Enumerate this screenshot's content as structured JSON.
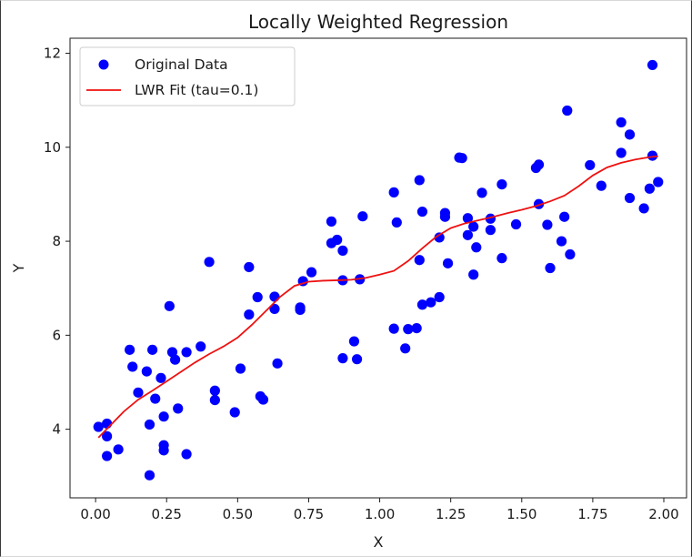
{
  "chart_data": {
    "type": "scatter",
    "title": "Locally Weighted Regression",
    "xlabel": "X",
    "ylabel": "Y",
    "xlim": [
      -0.09,
      2.08
    ],
    "ylim": [
      2.54,
      12.32
    ],
    "grid": false,
    "legend_position": "top-left",
    "xticks": [
      0.0,
      0.25,
      0.5,
      0.75,
      1.0,
      1.25,
      1.5,
      1.75,
      2.0
    ],
    "xtick_labels": [
      "0.00",
      "0.25",
      "0.50",
      "0.75",
      "1.00",
      "1.25",
      "1.50",
      "1.75",
      "2.00"
    ],
    "yticks": [
      4,
      6,
      8,
      10,
      12
    ],
    "ytick_labels": [
      "4",
      "6",
      "8",
      "10",
      "12"
    ],
    "colors": {
      "points": "#0000ff",
      "fit": "#ee1111",
      "axis": "#1a1a1a",
      "legend_border": "#cccccc"
    },
    "series": [
      {
        "name": "Original Data",
        "kind": "scatter",
        "points": [
          [
            0.01,
            4.05
          ],
          [
            0.04,
            4.12
          ],
          [
            0.04,
            3.85
          ],
          [
            0.04,
            3.43
          ],
          [
            0.08,
            3.57
          ],
          [
            0.12,
            5.69
          ],
          [
            0.13,
            5.33
          ],
          [
            0.15,
            4.78
          ],
          [
            0.18,
            5.23
          ],
          [
            0.19,
            3.02
          ],
          [
            0.19,
            4.1
          ],
          [
            0.2,
            5.69
          ],
          [
            0.21,
            4.65
          ],
          [
            0.23,
            5.09
          ],
          [
            0.24,
            4.27
          ],
          [
            0.24,
            3.66
          ],
          [
            0.24,
            3.55
          ],
          [
            0.26,
            6.62
          ],
          [
            0.27,
            5.64
          ],
          [
            0.28,
            5.48
          ],
          [
            0.29,
            4.44
          ],
          [
            0.32,
            5.64
          ],
          [
            0.32,
            3.47
          ],
          [
            0.37,
            5.76
          ],
          [
            0.4,
            7.56
          ],
          [
            0.42,
            4.62
          ],
          [
            0.42,
            4.82
          ],
          [
            0.49,
            4.36
          ],
          [
            0.51,
            5.29
          ],
          [
            0.54,
            7.45
          ],
          [
            0.54,
            6.44
          ],
          [
            0.57,
            6.81
          ],
          [
            0.58,
            4.7
          ],
          [
            0.59,
            4.63
          ],
          [
            0.63,
            6.82
          ],
          [
            0.63,
            6.56
          ],
          [
            0.64,
            5.4
          ],
          [
            0.72,
            6.54
          ],
          [
            0.72,
            6.59
          ],
          [
            0.73,
            7.15
          ],
          [
            0.76,
            7.34
          ],
          [
            0.83,
            8.42
          ],
          [
            0.83,
            7.96
          ],
          [
            0.85,
            8.03
          ],
          [
            0.87,
            7.8
          ],
          [
            0.87,
            7.17
          ],
          [
            0.87,
            5.51
          ],
          [
            0.91,
            5.87
          ],
          [
            0.92,
            5.49
          ],
          [
            0.93,
            7.19
          ],
          [
            0.94,
            8.53
          ],
          [
            1.05,
            9.04
          ],
          [
            1.05,
            6.14
          ],
          [
            1.06,
            8.4
          ],
          [
            1.09,
            5.72
          ],
          [
            1.1,
            6.13
          ],
          [
            1.13,
            6.15
          ],
          [
            1.14,
            9.3
          ],
          [
            1.14,
            7.6
          ],
          [
            1.15,
            8.63
          ],
          [
            1.15,
            6.65
          ],
          [
            1.18,
            6.7
          ],
          [
            1.21,
            8.08
          ],
          [
            1.21,
            6.81
          ],
          [
            1.23,
            8.6
          ],
          [
            1.23,
            8.52
          ],
          [
            1.24,
            7.53
          ],
          [
            1.28,
            9.78
          ],
          [
            1.29,
            9.77
          ],
          [
            1.31,
            8.49
          ],
          [
            1.31,
            8.13
          ],
          [
            1.33,
            8.31
          ],
          [
            1.33,
            7.29
          ],
          [
            1.34,
            7.87
          ],
          [
            1.36,
            9.03
          ],
          [
            1.39,
            8.48
          ],
          [
            1.39,
            8.24
          ],
          [
            1.43,
            9.21
          ],
          [
            1.43,
            7.64
          ],
          [
            1.48,
            8.36
          ],
          [
            1.55,
            9.56
          ],
          [
            1.56,
            8.79
          ],
          [
            1.56,
            9.63
          ],
          [
            1.59,
            8.35
          ],
          [
            1.6,
            7.43
          ],
          [
            1.64,
            8.0
          ],
          [
            1.65,
            8.52
          ],
          [
            1.66,
            10.78
          ],
          [
            1.67,
            7.72
          ],
          [
            1.74,
            9.62
          ],
          [
            1.78,
            9.18
          ],
          [
            1.85,
            10.53
          ],
          [
            1.85,
            9.88
          ],
          [
            1.88,
            10.27
          ],
          [
            1.88,
            8.92
          ],
          [
            1.93,
            8.7
          ],
          [
            1.95,
            9.12
          ],
          [
            1.96,
            9.82
          ],
          [
            1.96,
            11.75
          ],
          [
            1.98,
            9.26
          ]
        ]
      },
      {
        "name": "LWR Fit (tau=0.1)",
        "kind": "line",
        "points": [
          [
            0.01,
            3.82
          ],
          [
            0.05,
            4.07
          ],
          [
            0.1,
            4.38
          ],
          [
            0.15,
            4.63
          ],
          [
            0.2,
            4.82
          ],
          [
            0.25,
            5.02
          ],
          [
            0.3,
            5.22
          ],
          [
            0.35,
            5.42
          ],
          [
            0.4,
            5.6
          ],
          [
            0.45,
            5.76
          ],
          [
            0.5,
            5.95
          ],
          [
            0.55,
            6.22
          ],
          [
            0.6,
            6.52
          ],
          [
            0.65,
            6.82
          ],
          [
            0.7,
            7.05
          ],
          [
            0.75,
            7.14
          ],
          [
            0.8,
            7.16
          ],
          [
            0.85,
            7.17
          ],
          [
            0.9,
            7.18
          ],
          [
            0.95,
            7.22
          ],
          [
            1.0,
            7.29
          ],
          [
            1.05,
            7.37
          ],
          [
            1.1,
            7.58
          ],
          [
            1.15,
            7.85
          ],
          [
            1.2,
            8.1
          ],
          [
            1.25,
            8.28
          ],
          [
            1.3,
            8.38
          ],
          [
            1.35,
            8.45
          ],
          [
            1.4,
            8.52
          ],
          [
            1.45,
            8.6
          ],
          [
            1.5,
            8.67
          ],
          [
            1.55,
            8.75
          ],
          [
            1.6,
            8.85
          ],
          [
            1.65,
            8.97
          ],
          [
            1.7,
            9.17
          ],
          [
            1.75,
            9.4
          ],
          [
            1.8,
            9.57
          ],
          [
            1.85,
            9.67
          ],
          [
            1.9,
            9.74
          ],
          [
            1.95,
            9.79
          ],
          [
            1.98,
            9.81
          ]
        ]
      }
    ]
  }
}
